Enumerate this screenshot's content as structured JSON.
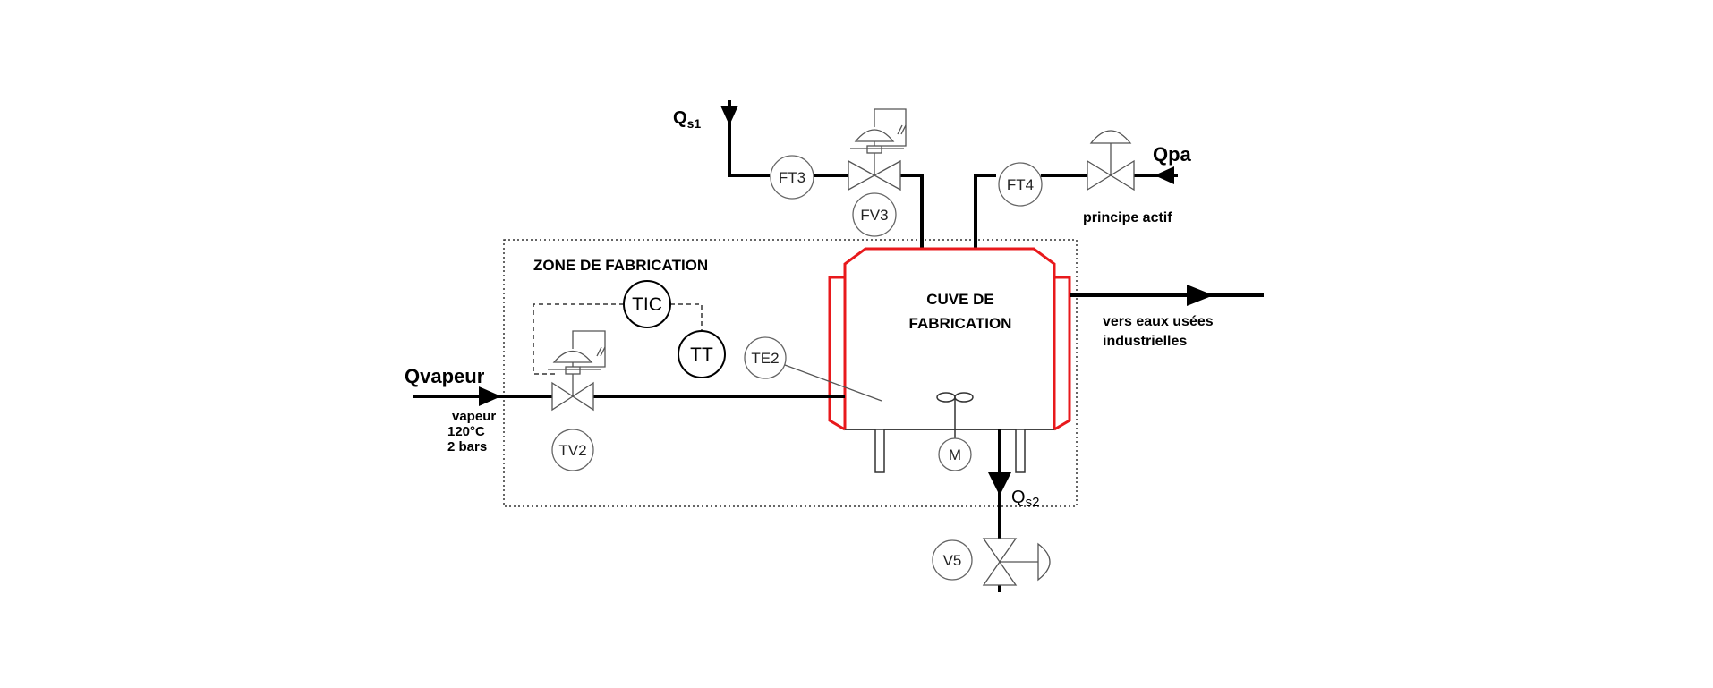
{
  "zone": {
    "title": "ZONE DE FABRICATION"
  },
  "tank": {
    "line1": "CUVE DE",
    "line2": "FABRICATION",
    "motor": "M"
  },
  "instruments": {
    "ft3": "FT3",
    "fv3": "FV3",
    "ft4": "FT4",
    "tic": "TIC",
    "tt": "TT",
    "te2": "TE2",
    "tv2": "TV2",
    "v5": "V5"
  },
  "flows": {
    "qs1_main": "Q",
    "qs1_sub": "s1",
    "qs2_main": "Q",
    "qs2_sub": "s2",
    "qpa": "Qpa",
    "qvapeur": "Qvapeur"
  },
  "notes": {
    "principe_actif": "principe actif",
    "vapeur_1": "vapeur",
    "vapeur_2": "120°C",
    "vapeur_3": "2 bars",
    "eaux_1": "vers eaux usées",
    "eaux_2": "industrielles"
  },
  "colors": {
    "tank_jacket": "#e8191c",
    "line": "#000000"
  }
}
